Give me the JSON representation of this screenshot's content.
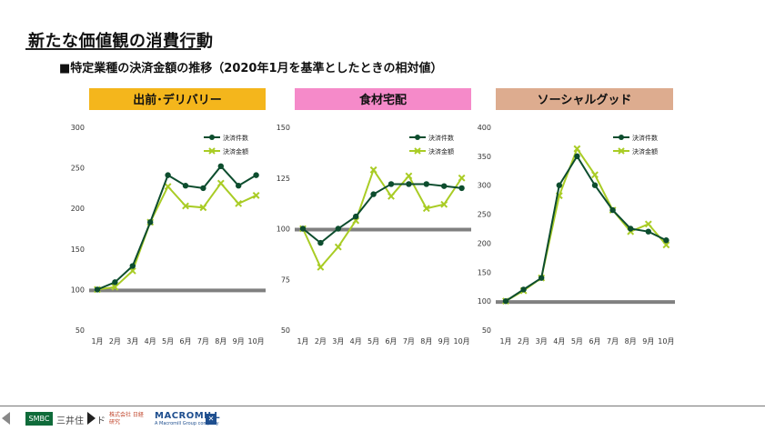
{
  "page": {
    "title": "新たな価値観の消費行動",
    "subtitle": "■特定業種の決済金額の推移（2020年1月を基準としたときの相対値）"
  },
  "footer": {
    "logo_smbc": "SMBC",
    "logo_text_1": "三井住",
    "logo_text_2": "ド",
    "logo_text_3": "株式会社 日経研究",
    "logo_mm": "MACROMILL",
    "logo_mm_sub": "A Macromill Group company"
  },
  "colors": {
    "count_series": "#0d4d2e",
    "amount_series": "#a9cc25",
    "baseline": "#808080",
    "header_delivery": "#f4b61c",
    "header_food": "#f58ac9",
    "header_social": "#ddac8f"
  },
  "chart_data": [
    {
      "type": "line",
      "header": "出前･デリバリー",
      "categories": [
        "1月",
        "2月",
        "3月",
        "4月",
        "5月",
        "6月",
        "7月",
        "8月",
        "9月",
        "10月"
      ],
      "ylim": [
        50,
        300
      ],
      "yticks": [
        50,
        100,
        150,
        200,
        250,
        300
      ],
      "baseline": 100,
      "legend_position": "top-right",
      "series": [
        {
          "name": "決済件数",
          "values": [
            100,
            109,
            129,
            183,
            241,
            228,
            225,
            252,
            228,
            241
          ]
        },
        {
          "name": "決済金額",
          "values": [
            100,
            103,
            123,
            183,
            227,
            203,
            201,
            231,
            206,
            216
          ]
        }
      ]
    },
    {
      "type": "line",
      "header": "食材宅配",
      "categories": [
        "1月",
        "2月",
        "3月",
        "4月",
        "5月",
        "6月",
        "7月",
        "8月",
        "9月",
        "10月"
      ],
      "ylim": [
        50,
        150
      ],
      "yticks": [
        50,
        75,
        100,
        125,
        150
      ],
      "baseline": 100,
      "legend_position": "top-right",
      "series": [
        {
          "name": "決済件数",
          "values": [
            100,
            93,
            100,
            106,
            117,
            122,
            122,
            122,
            121,
            120
          ]
        },
        {
          "name": "決済金額",
          "values": [
            100,
            81,
            91,
            104,
            129,
            116,
            126,
            110,
            112,
            125
          ]
        }
      ]
    },
    {
      "type": "line",
      "header": "ソーシャルグッド",
      "categories": [
        "1月",
        "2月",
        "3月",
        "4月",
        "5月",
        "6月",
        "7月",
        "8月",
        "9月",
        "10月"
      ],
      "ylim": [
        50,
        400
      ],
      "yticks": [
        50,
        100,
        150,
        200,
        250,
        300,
        350,
        400
      ],
      "baseline": 100,
      "legend_position": "top-right",
      "series": [
        {
          "name": "決済件数",
          "values": [
            100,
            120,
            140,
            300,
            350,
            300,
            257,
            225,
            220,
            205
          ]
        },
        {
          "name": "決済金額",
          "values": [
            100,
            118,
            140,
            282,
            363,
            318,
            257,
            220,
            233,
            197
          ]
        }
      ]
    }
  ]
}
